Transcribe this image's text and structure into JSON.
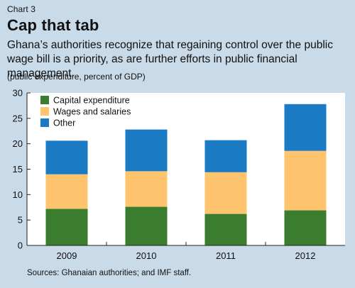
{
  "header": {
    "chart_number": "Chart 3",
    "title": "Cap that tab",
    "subtitle": "Ghana’s authorities recognize that regaining control over the public wage bill is a priority, as are further efforts in public financial management.",
    "units": "(public expenditure, percent of GDP)"
  },
  "footer": {
    "source": "Sources: Ghanaian authorities; and IMF staff."
  },
  "chart_data": {
    "type": "bar",
    "stacked": true,
    "categories": [
      "2009",
      "2010",
      "2011",
      "2012"
    ],
    "series": [
      {
        "name": "Capital expenditure",
        "color": "#3a7d2e",
        "values": [
          7.2,
          7.6,
          6.2,
          6.9
        ]
      },
      {
        "name": "Wages and salaries",
        "color": "#ffc46e",
        "values": [
          6.8,
          7.0,
          8.2,
          11.7
        ]
      },
      {
        "name": "Other",
        "color": "#1a7ac4",
        "values": [
          6.6,
          8.2,
          6.3,
          9.2
        ]
      }
    ],
    "ylim": [
      0,
      30
    ],
    "yticks": [
      0,
      5,
      10,
      15,
      20,
      25,
      30
    ],
    "grid": false,
    "legend_position": "top-left",
    "background_color": "#ffffff",
    "page_background_color": "#c9dae8"
  }
}
